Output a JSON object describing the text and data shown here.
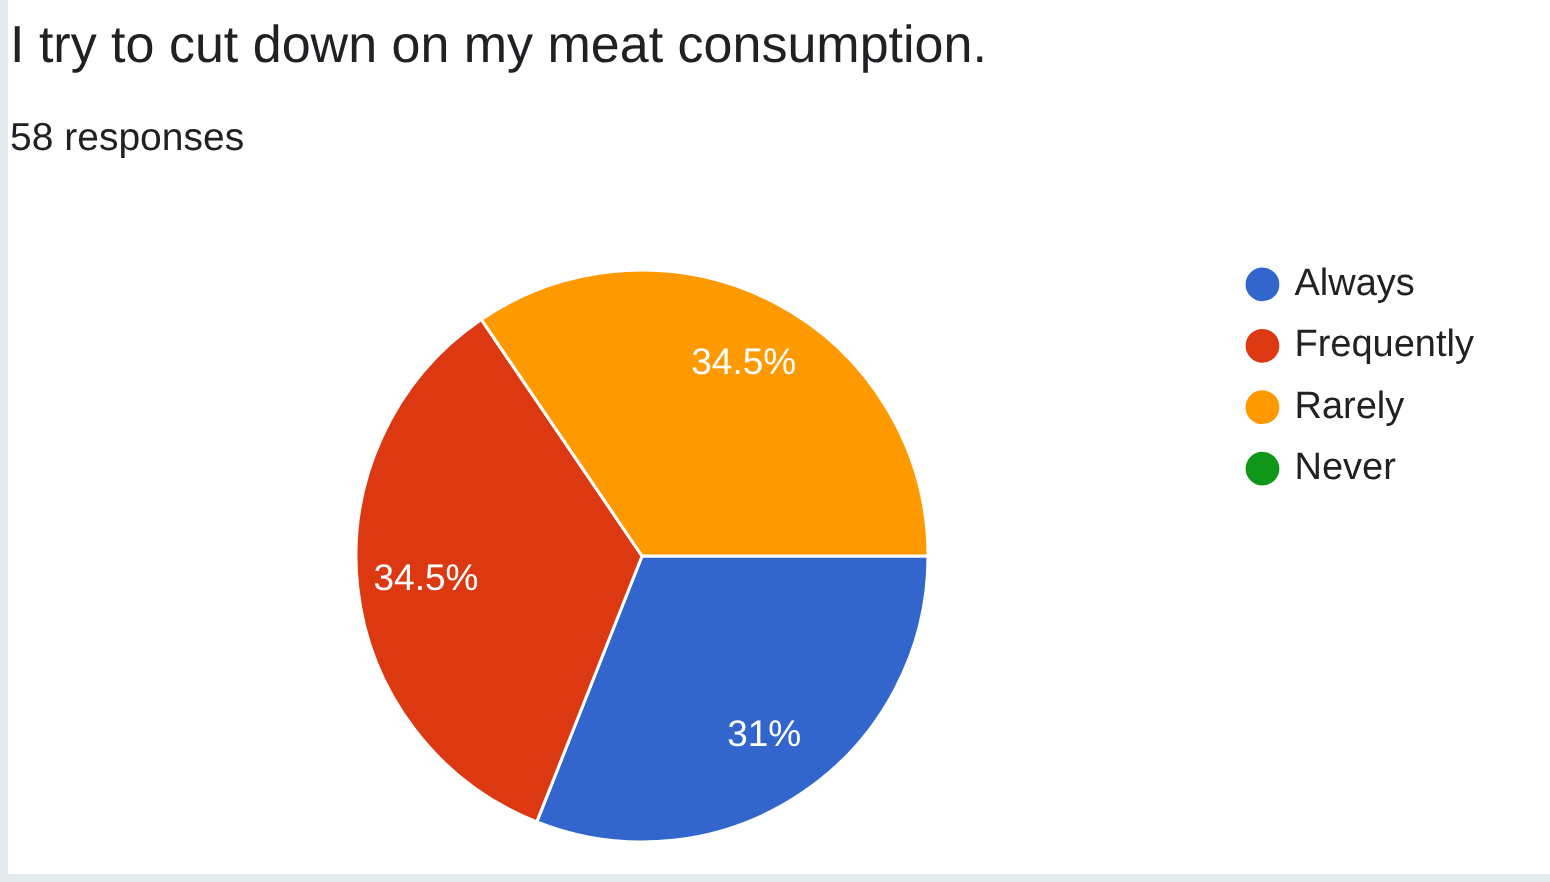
{
  "chart_data": {
    "type": "pie",
    "title": "I try to cut down on my meat consumption.",
    "subtitle": "58 responses",
    "categories": [
      "Always",
      "Frequently",
      "Rarely",
      "Never"
    ],
    "values": [
      31,
      34.5,
      34.5,
      0
    ],
    "colors": [
      "#3366cc",
      "#dc3912",
      "#ff9900",
      "#109618"
    ],
    "value_labels": [
      "31%",
      "34.5%",
      "34.5%",
      null
    ],
    "legend": "top right"
  }
}
